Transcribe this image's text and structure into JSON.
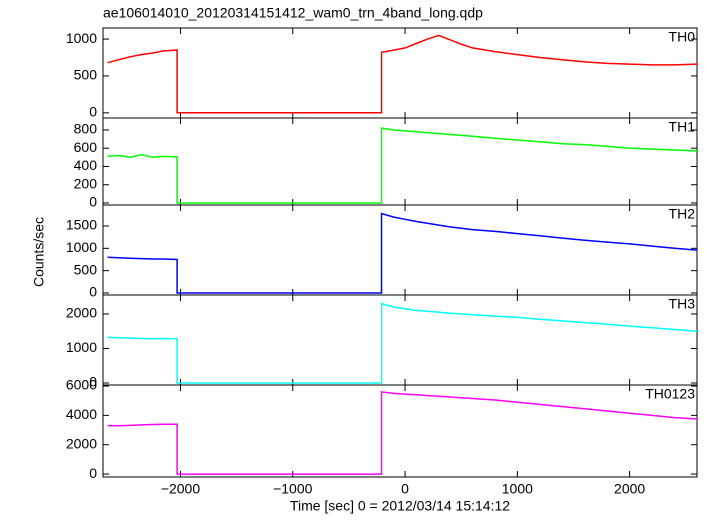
{
  "chart_data": [
    {
      "type": "line",
      "title": "ae106014010_20120314151412_wam0_trn_4band_long.qdp",
      "label": "TH0",
      "color": "#ff0000",
      "x": [
        -2650,
        -2550,
        -2450,
        -2350,
        -2250,
        -2150,
        -2030,
        -2030,
        -210,
        -210,
        -100,
        0,
        100,
        200,
        300,
        400,
        500,
        600,
        800,
        1000,
        1200,
        1400,
        1600,
        1800,
        2000,
        2200,
        2400,
        2600
      ],
      "values": [
        680,
        720,
        760,
        790,
        810,
        840,
        850,
        0,
        0,
        820,
        850,
        880,
        940,
        1000,
        1050,
        990,
        930,
        880,
        830,
        790,
        750,
        720,
        690,
        670,
        660,
        650,
        650,
        660
      ],
      "xlim": [
        -2690,
        2600
      ],
      "ylim": [
        -70,
        1150
      ],
      "yticks": [
        0,
        500,
        1000
      ]
    },
    {
      "type": "line",
      "label": "TH1",
      "color": "#00ff00",
      "x": [
        -2650,
        -2550,
        -2450,
        -2350,
        -2250,
        -2150,
        -2030,
        -2030,
        -210,
        -210,
        -100,
        0,
        100,
        200,
        300,
        400,
        500,
        600,
        800,
        1000,
        1200,
        1400,
        1600,
        1800,
        2000,
        2200,
        2400,
        2600
      ],
      "values": [
        510,
        520,
        500,
        530,
        500,
        510,
        505,
        0,
        0,
        820,
        800,
        790,
        780,
        770,
        760,
        750,
        740,
        730,
        710,
        690,
        670,
        650,
        640,
        620,
        600,
        590,
        580,
        570
      ],
      "xlim": [
        -2690,
        2600
      ],
      "ylim": [
        -22,
        931
      ],
      "yticks": [
        0,
        200,
        400,
        600,
        800
      ]
    },
    {
      "type": "line",
      "label": "TH2",
      "color": "#0000ff",
      "ylabel": "Counts/sec",
      "x": [
        -2650,
        -2550,
        -2450,
        -2350,
        -2250,
        -2150,
        -2030,
        -2030,
        -210,
        -210,
        -100,
        0,
        100,
        200,
        300,
        400,
        500,
        600,
        800,
        1000,
        1200,
        1400,
        1600,
        1800,
        2000,
        2200,
        2400,
        2600
      ],
      "values": [
        800,
        790,
        780,
        770,
        760,
        760,
        750,
        0,
        0,
        1780,
        1700,
        1650,
        1600,
        1560,
        1520,
        1480,
        1450,
        1420,
        1380,
        1330,
        1280,
        1230,
        1180,
        1140,
        1100,
        1050,
        1000,
        960
      ],
      "xlim": [
        -2690,
        2600
      ],
      "ylim": [
        -45,
        1970
      ],
      "yticks": [
        0,
        500,
        1000,
        1500
      ]
    },
    {
      "type": "line",
      "label": "TH3",
      "color": "#00ffff",
      "x": [
        -2650,
        -2550,
        -2450,
        -2350,
        -2250,
        -2150,
        -2030,
        -2030,
        -210,
        -210,
        -100,
        0,
        100,
        200,
        300,
        400,
        500,
        600,
        800,
        1000,
        1200,
        1400,
        1600,
        1800,
        2000,
        2200,
        2400,
        2600
      ],
      "values": [
        1320,
        1310,
        1300,
        1290,
        1280,
        1290,
        1280,
        0,
        0,
        2300,
        2200,
        2150,
        2100,
        2080,
        2050,
        2020,
        2000,
        1980,
        1940,
        1900,
        1850,
        1800,
        1750,
        1700,
        1650,
        1600,
        1550,
        1500
      ],
      "xlim": [
        -2690,
        2600
      ],
      "ylim": [
        -58,
        2550
      ],
      "yticks": [
        0,
        1000,
        2000
      ]
    },
    {
      "type": "line",
      "label": "TH0123",
      "color": "#ff00ff",
      "xlabel": "Time [sec] 0 = 2012/03/14 15:14:12",
      "x": [
        -2650,
        -2550,
        -2450,
        -2350,
        -2250,
        -2150,
        -2030,
        -2030,
        -210,
        -210,
        -100,
        0,
        100,
        200,
        300,
        400,
        500,
        600,
        800,
        1000,
        1200,
        1400,
        1600,
        1800,
        2000,
        2200,
        2400,
        2600
      ],
      "values": [
        3300,
        3290,
        3320,
        3350,
        3380,
        3390,
        3400,
        0,
        0,
        5600,
        5500,
        5450,
        5400,
        5350,
        5300,
        5250,
        5200,
        5150,
        5050,
        4900,
        4750,
        4600,
        4450,
        4300,
        4150,
        4000,
        3850,
        3750
      ],
      "xlim": [
        -2690,
        2600
      ],
      "ylim": [
        -200,
        6070
      ],
      "yticks": [
        0,
        2000,
        4000,
        6000
      ],
      "xticks": [
        {
          "value": -2000,
          "label": "−2000"
        },
        {
          "value": -1000,
          "label": "−1000"
        },
        0,
        1000,
        2000
      ]
    }
  ]
}
